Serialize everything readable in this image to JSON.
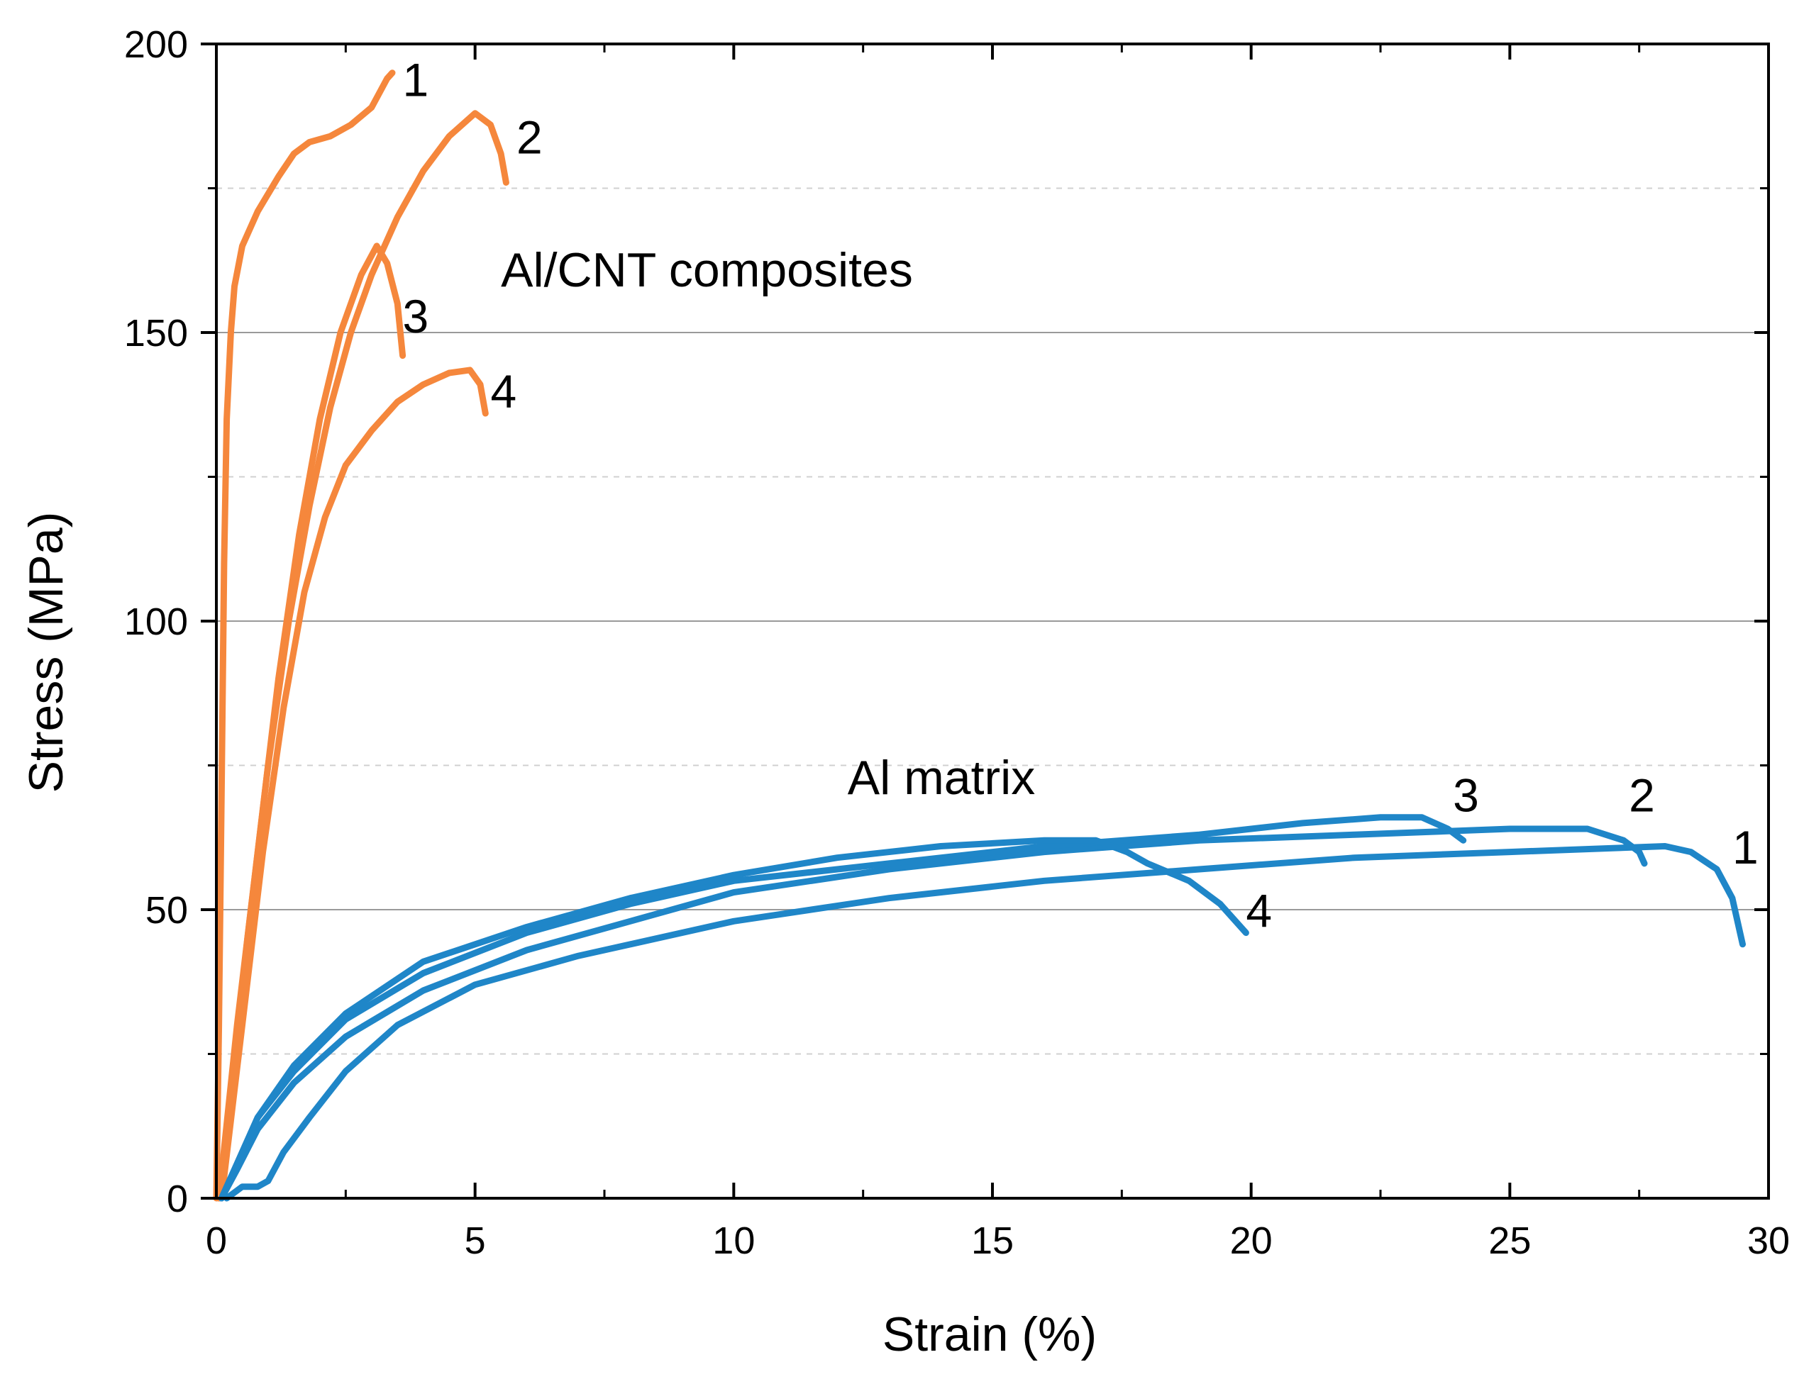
{
  "chart_data": {
    "type": "line",
    "title": "",
    "xlabel": "Strain (%)",
    "ylabel": "Stress (MPa)",
    "xlim": [
      0,
      30
    ],
    "ylim": [
      0,
      200
    ],
    "xticks": [
      0,
      5,
      10,
      15,
      20,
      25,
      30
    ],
    "yticks": [
      0,
      50,
      100,
      150,
      200
    ],
    "grid": {
      "major_y": [
        50,
        100,
        150
      ],
      "minor_y_dashed": [
        25,
        75,
        125,
        175
      ]
    },
    "colors": {
      "composite": "#f5873c",
      "matrix": "#1f86c8",
      "grid_major": "#9a9a9a",
      "grid_minor": "#d0d0d0"
    },
    "annotations": [
      {
        "text": "Al/CNT composites",
        "x": 5.5,
        "y": 158
      },
      {
        "text": "Al matrix",
        "x": 12.2,
        "y": 70
      }
    ],
    "series": [
      {
        "name": "Al/CNT composite 1",
        "group": "composite",
        "label": "1",
        "label_at": [
          3.6,
          191
        ],
        "points": [
          [
            0,
            0
          ],
          [
            0.05,
            30
          ],
          [
            0.1,
            70
          ],
          [
            0.15,
            110
          ],
          [
            0.2,
            135
          ],
          [
            0.28,
            150
          ],
          [
            0.35,
            158
          ],
          [
            0.5,
            165
          ],
          [
            0.8,
            171
          ],
          [
            1.2,
            177
          ],
          [
            1.5,
            181
          ],
          [
            1.8,
            183
          ],
          [
            2.2,
            184
          ],
          [
            2.6,
            186
          ],
          [
            3.0,
            189
          ],
          [
            3.3,
            194
          ],
          [
            3.4,
            195
          ]
        ]
      },
      {
        "name": "Al/CNT composite 2",
        "group": "composite",
        "label": "2",
        "label_at": [
          5.8,
          181
        ],
        "points": [
          [
            0.05,
            0
          ],
          [
            0.3,
            20
          ],
          [
            0.6,
            45
          ],
          [
            1.0,
            75
          ],
          [
            1.4,
            100
          ],
          [
            1.8,
            120
          ],
          [
            2.2,
            137
          ],
          [
            2.6,
            150
          ],
          [
            3.0,
            160
          ],
          [
            3.5,
            170
          ],
          [
            4.0,
            178
          ],
          [
            4.5,
            184
          ],
          [
            5.0,
            188
          ],
          [
            5.3,
            186
          ],
          [
            5.5,
            181
          ],
          [
            5.6,
            176
          ]
        ]
      },
      {
        "name": "Al/CNT composite 3",
        "group": "composite",
        "label": "3",
        "label_at": [
          3.6,
          150
        ],
        "points": [
          [
            0.05,
            0
          ],
          [
            0.4,
            30
          ],
          [
            0.8,
            60
          ],
          [
            1.2,
            90
          ],
          [
            1.6,
            115
          ],
          [
            2.0,
            135
          ],
          [
            2.4,
            150
          ],
          [
            2.8,
            160
          ],
          [
            3.1,
            165
          ],
          [
            3.3,
            162
          ],
          [
            3.5,
            155
          ],
          [
            3.6,
            146
          ]
        ]
      },
      {
        "name": "Al/CNT composite 4",
        "group": "composite",
        "label": "4",
        "label_at": [
          5.3,
          137
        ],
        "points": [
          [
            0.1,
            0
          ],
          [
            0.5,
            30
          ],
          [
            0.9,
            60
          ],
          [
            1.3,
            85
          ],
          [
            1.7,
            105
          ],
          [
            2.1,
            118
          ],
          [
            2.5,
            127
          ],
          [
            3.0,
            133
          ],
          [
            3.5,
            138
          ],
          [
            4.0,
            141
          ],
          [
            4.5,
            143
          ],
          [
            4.9,
            143.5
          ],
          [
            5.1,
            141
          ],
          [
            5.2,
            136
          ]
        ]
      },
      {
        "name": "Al matrix 1",
        "group": "matrix",
        "label": "1",
        "label_at": [
          29.3,
          58
        ],
        "points": [
          [
            0.2,
            0
          ],
          [
            0.5,
            2
          ],
          [
            0.8,
            2
          ],
          [
            1.0,
            3
          ],
          [
            1.3,
            8
          ],
          [
            1.8,
            14
          ],
          [
            2.5,
            22
          ],
          [
            3.5,
            30
          ],
          [
            5,
            37
          ],
          [
            7,
            42
          ],
          [
            10,
            48
          ],
          [
            13,
            52
          ],
          [
            16,
            55
          ],
          [
            19,
            57
          ],
          [
            22,
            59
          ],
          [
            25,
            60
          ],
          [
            28,
            61
          ],
          [
            28.5,
            60
          ],
          [
            29.0,
            57
          ],
          [
            29.3,
            52
          ],
          [
            29.5,
            44
          ]
        ]
      },
      {
        "name": "Al matrix 2",
        "group": "matrix",
        "label": "2",
        "label_at": [
          27.3,
          67
        ],
        "points": [
          [
            0.1,
            0
          ],
          [
            0.4,
            5
          ],
          [
            0.8,
            12
          ],
          [
            1.5,
            20
          ],
          [
            2.5,
            28
          ],
          [
            4,
            36
          ],
          [
            6,
            43
          ],
          [
            8,
            48
          ],
          [
            10,
            53
          ],
          [
            13,
            57
          ],
          [
            16,
            60
          ],
          [
            19,
            62
          ],
          [
            22,
            63
          ],
          [
            25,
            64
          ],
          [
            26.5,
            64
          ],
          [
            27.2,
            62
          ],
          [
            27.5,
            60
          ],
          [
            27.6,
            58
          ]
        ]
      },
      {
        "name": "Al matrix 3",
        "group": "matrix",
        "label": "3",
        "label_at": [
          23.9,
          67
        ],
        "points": [
          [
            0.1,
            0
          ],
          [
            0.4,
            6
          ],
          [
            0.8,
            14
          ],
          [
            1.5,
            22
          ],
          [
            2.5,
            31
          ],
          [
            4,
            39
          ],
          [
            6,
            46
          ],
          [
            8,
            51
          ],
          [
            10,
            55
          ],
          [
            13,
            58
          ],
          [
            16,
            61
          ],
          [
            19,
            63
          ],
          [
            21,
            65
          ],
          [
            22.5,
            66
          ],
          [
            23.3,
            66
          ],
          [
            23.8,
            64
          ],
          [
            24.1,
            62
          ]
        ]
      },
      {
        "name": "Al matrix 4",
        "group": "matrix",
        "label": "4",
        "label_at": [
          19.9,
          47
        ],
        "points": [
          [
            0.1,
            0
          ],
          [
            0.4,
            6
          ],
          [
            0.8,
            14
          ],
          [
            1.5,
            23
          ],
          [
            2.5,
            32
          ],
          [
            4,
            41
          ],
          [
            6,
            47
          ],
          [
            8,
            52
          ],
          [
            10,
            56
          ],
          [
            12,
            59
          ],
          [
            14,
            61
          ],
          [
            16,
            62
          ],
          [
            17,
            62
          ],
          [
            17.6,
            60
          ],
          [
            18,
            58
          ],
          [
            18.8,
            55
          ],
          [
            19.4,
            51
          ],
          [
            19.9,
            46
          ]
        ]
      }
    ]
  }
}
